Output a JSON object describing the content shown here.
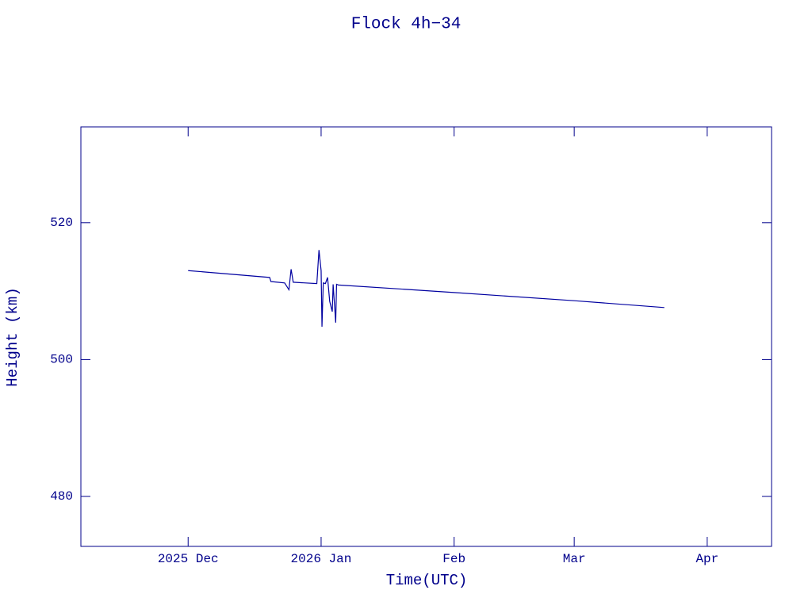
{
  "chart_data": {
    "type": "line",
    "title": "Flock 4h−34",
    "x_label": "Time(UTC)",
    "y_label": "Height (km)",
    "x": [
      0,
      19,
      19.3,
      22.5,
      23.5,
      24,
      24.5,
      30,
      30.5,
      31,
      31.2,
      31.5,
      32,
      32.5,
      33,
      33.6,
      33.8,
      34.4,
      34.6,
      35,
      62,
      90,
      111
    ],
    "series": [
      {
        "name": "Height",
        "color": "#0000a0",
        "values": [
          513.0,
          512.0,
          511.4,
          511.2,
          510.2,
          513.2,
          511.3,
          511.1,
          516.0,
          513.0,
          504.8,
          511.2,
          511.1,
          512.0,
          508.5,
          507.0,
          511.0,
          505.4,
          511.0,
          510.9,
          509.8,
          508.6,
          507.6
        ]
      }
    ],
    "xlim": [
      -25,
      136
    ],
    "xticks": [
      {
        "value": 0,
        "label": "2025 Dec"
      },
      {
        "value": 31,
        "label": "2026 Jan"
      },
      {
        "value": 62,
        "label": "Feb"
      },
      {
        "value": 90,
        "label": "Mar"
      },
      {
        "value": 121,
        "label": "Apr"
      }
    ],
    "ylim": [
      472.7,
      534
    ],
    "yticks": [
      480,
      500,
      520
    ],
    "axis_color": "#00008b"
  }
}
